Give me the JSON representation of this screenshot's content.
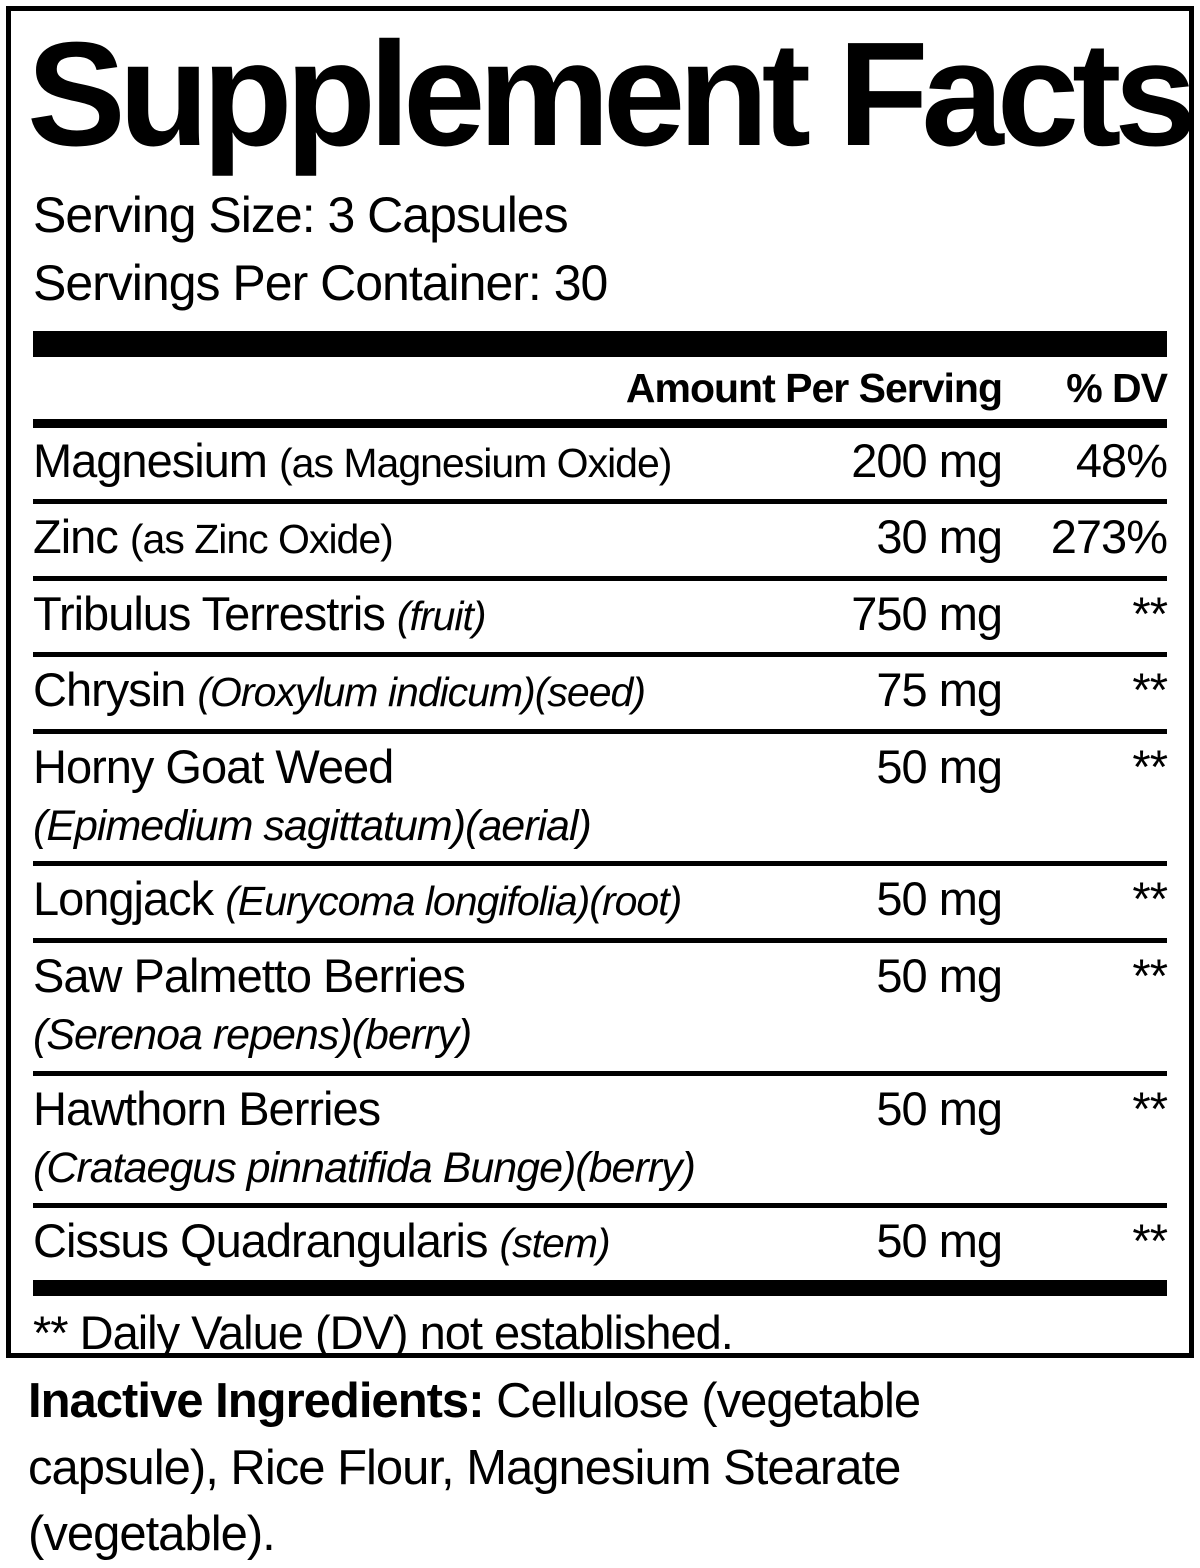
{
  "title": "Supplement Facts",
  "serving": {
    "size_line": "Serving Size: 3 Capsules",
    "per_container_line": "Servings Per Container: 30"
  },
  "table": {
    "header": {
      "amount_label": "Amount Per Serving",
      "dv_label": "% DV"
    },
    "rows": [
      {
        "name": "Magnesium",
        "note": "(as Magnesium Oxide)",
        "note_italic": false,
        "latin": "",
        "amount": "200 mg",
        "dv": "48%"
      },
      {
        "name": "Zinc",
        "note": "(as Zinc Oxide)",
        "note_italic": false,
        "latin": "",
        "amount": "30 mg",
        "dv": "273%"
      },
      {
        "name": "Tribulus Terrestris",
        "note": "(fruit)",
        "note_italic": true,
        "latin": "",
        "amount": "750 mg",
        "dv": "**"
      },
      {
        "name": "Chrysin",
        "note": "(Oroxylum indicum)(seed)",
        "note_italic": true,
        "latin": "",
        "amount": "75 mg",
        "dv": "**"
      },
      {
        "name": "Horny Goat Weed",
        "note": "",
        "note_italic": false,
        "latin": "(Epimedium sagittatum)(aerial)",
        "amount": "50 mg",
        "dv": "**"
      },
      {
        "name": "Longjack",
        "note": "(Eurycoma longifolia)(root)",
        "note_italic": true,
        "latin": "",
        "amount": "50 mg",
        "dv": "**"
      },
      {
        "name": "Saw Palmetto Berries",
        "note": "",
        "note_italic": false,
        "latin": "(Serenoa repens)(berry)",
        "amount": "50 mg",
        "dv": "**"
      },
      {
        "name": "Hawthorn Berries",
        "note": "",
        "note_italic": false,
        "latin": "(Crataegus pinnatifida Bunge)(berry)",
        "amount": "50 mg",
        "dv": "**"
      },
      {
        "name": "Cissus Quadrangularis",
        "note": "(stem)",
        "note_italic": true,
        "latin": "",
        "amount": "50 mg",
        "dv": "**"
      }
    ],
    "footnote": "** Daily Value (DV) not established."
  },
  "inactive": {
    "label": "Inactive Ingredients:",
    "text": " Cellulose (vegetable capsule), Rice Flour, Magnesium Stearate (vegetable)."
  },
  "colors": {
    "ink": "#000000",
    "background": "#ffffff"
  }
}
